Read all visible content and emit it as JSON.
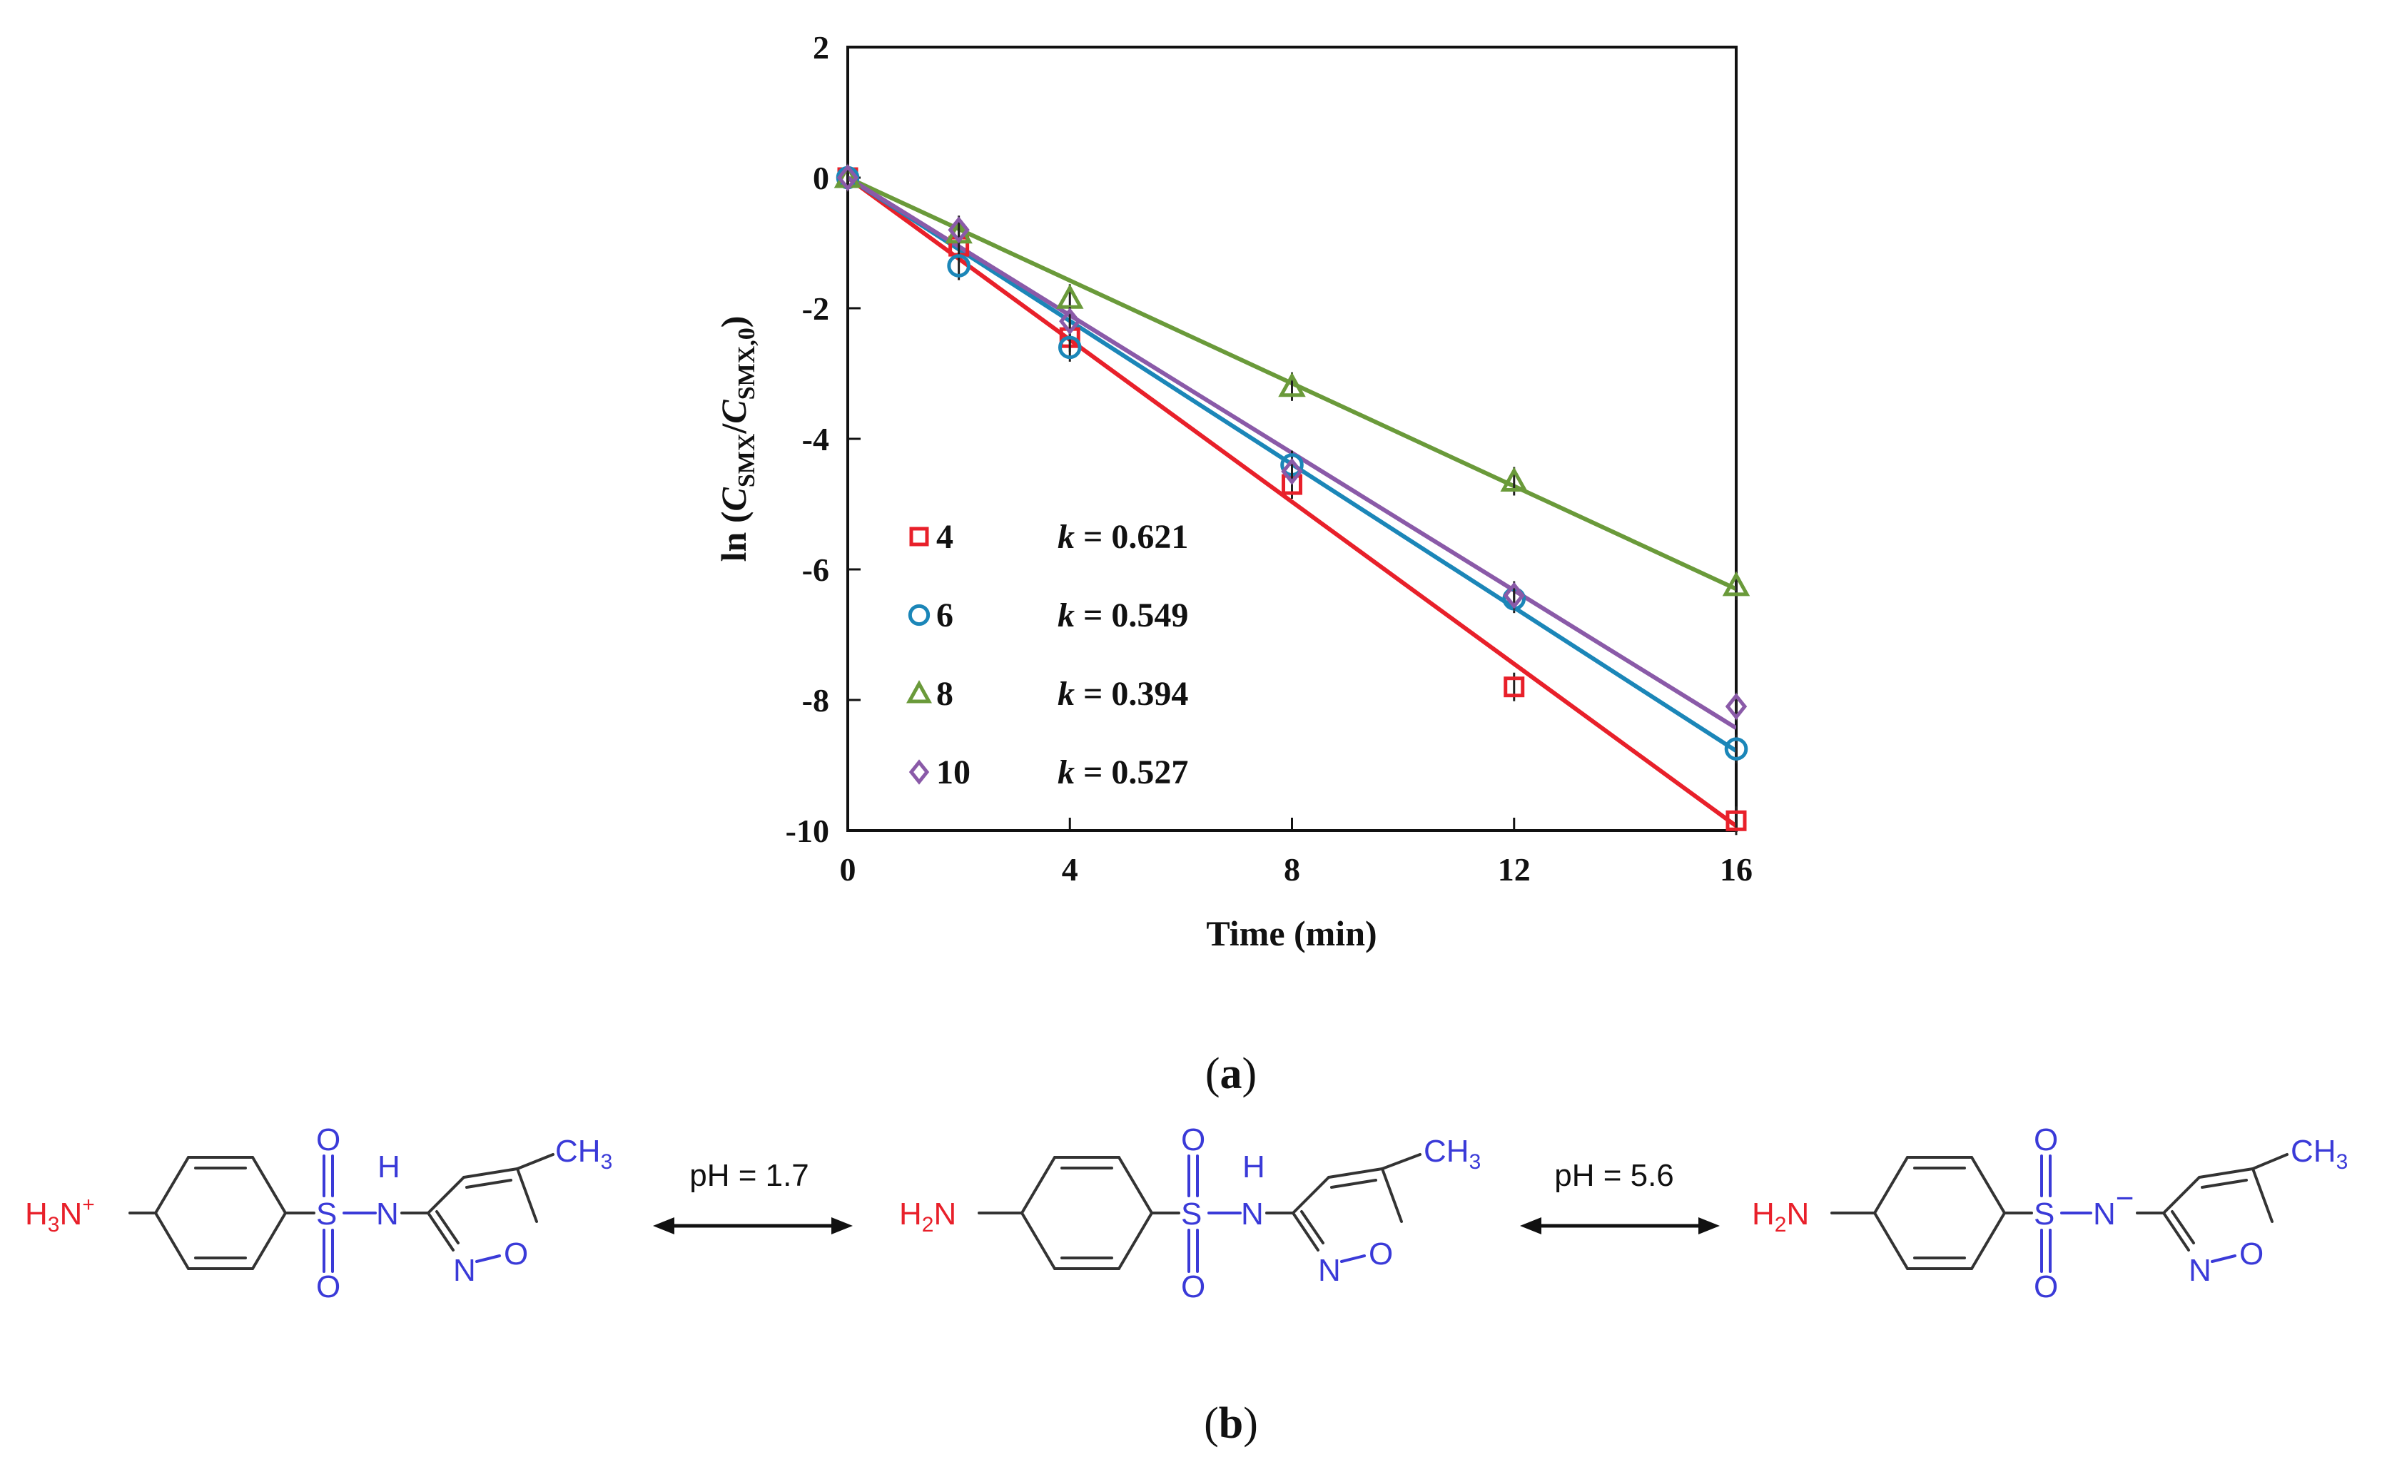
{
  "chart_data": {
    "type": "scatter",
    "xlabel": "Time (min)",
    "ylabel_parts": [
      "ln (",
      "C",
      "SMX",
      "/",
      "C",
      "SMX,0",
      ")"
    ],
    "x_ticks": [
      "0",
      "4",
      "8",
      "12",
      "16"
    ],
    "y_ticks": [
      "2",
      "0",
      "-2",
      "-4",
      "-6",
      "-8",
      "-10"
    ],
    "xlim": [
      0,
      16
    ],
    "ylim": [
      -10,
      2
    ],
    "grid": false,
    "legend_position": "lower-left",
    "k_symbol": "k",
    "series": [
      {
        "name": "4",
        "k_label": "= 0.621",
        "marker": "square",
        "color": "#e8202a",
        "x": [
          0,
          2,
          4,
          8,
          12,
          16
        ],
        "y": [
          0,
          -1.05,
          -2.45,
          -4.7,
          -7.8,
          -9.85
        ],
        "fit": [
          [
            0,
            0
          ],
          [
            16,
            -9.93
          ]
        ]
      },
      {
        "name": "6",
        "k_label": "= 0.549",
        "marker": "circle",
        "color": "#1b86b8",
        "x": [
          0,
          2,
          4,
          8,
          12,
          16
        ],
        "y": [
          0,
          -1.35,
          -2.6,
          -4.4,
          -6.45,
          -8.75
        ],
        "fit": [
          [
            0,
            0
          ],
          [
            16,
            -8.78
          ]
        ]
      },
      {
        "name": "8",
        "k_label": "= 0.394",
        "marker": "triangle",
        "color": "#6a9a3a",
        "x": [
          0,
          2,
          4,
          8,
          12,
          16
        ],
        "y": [
          0,
          -0.85,
          -1.85,
          -3.2,
          -4.65,
          -6.25
        ],
        "fit": [
          [
            0,
            0
          ],
          [
            16,
            -6.3
          ]
        ]
      },
      {
        "name": "10",
        "k_label": "= 0.527",
        "marker": "diamond",
        "color": "#8a5aa8",
        "x": [
          0,
          2,
          4,
          8,
          12,
          16
        ],
        "y": [
          0,
          -0.8,
          -2.2,
          -4.5,
          -6.4,
          -8.1
        ],
        "fit": [
          [
            0,
            0
          ],
          [
            16,
            -8.43
          ]
        ]
      }
    ]
  },
  "captions": {
    "a_open": "(",
    "a_letter": "a",
    "a_close": ")",
    "b_open": "(",
    "b_letter": "b",
    "b_close": ")"
  },
  "scheme": {
    "arrow1_label": "pH = 1.7",
    "arrow2_label": "pH = 5.6",
    "mol1": {
      "amine": "H",
      "amine_sub": "3",
      "amine_n": "N",
      "amine_charge": "+",
      "s": "S",
      "o_top": "O",
      "o_bot": "O",
      "nh_h": "H",
      "nh_n": "N",
      "ring_n": "N",
      "ring_o": "O",
      "methyl": "CH",
      "methyl_sub": "3"
    },
    "mol2": {
      "amine": "H",
      "amine_sub": "2",
      "amine_n": "N",
      "s": "S",
      "o_top": "O",
      "o_bot": "O",
      "nh_h": "H",
      "nh_n": "N",
      "ring_n": "N",
      "ring_o": "O",
      "methyl": "CH",
      "methyl_sub": "3"
    },
    "mol3": {
      "amine": "H",
      "amine_sub": "2",
      "amine_n": "N",
      "s": "S",
      "o_top": "O",
      "o_bot": "O",
      "n_minus": "N",
      "minus": "−",
      "ring_n": "N",
      "ring_o": "O",
      "methyl": "CH",
      "methyl_sub": "3"
    }
  }
}
